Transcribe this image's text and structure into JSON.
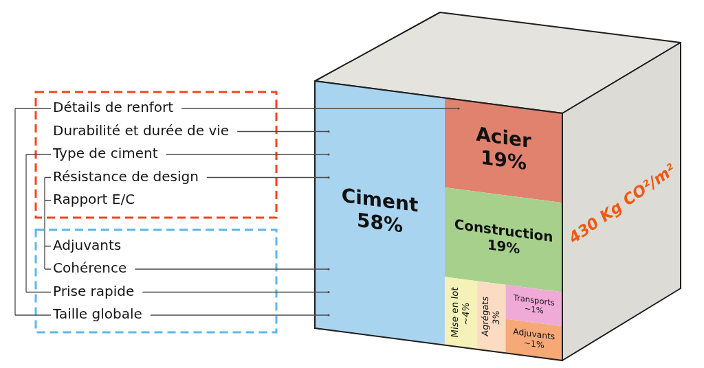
{
  "chart_data": {
    "type": "other",
    "title": "430 Kg CO²/m²",
    "categories": [
      "Ciment",
      "Acier",
      "Construction",
      "Mise en lot",
      "Agrégats",
      "Transports",
      "Adjuvants"
    ],
    "values": [
      58,
      19,
      19,
      4,
      3,
      1,
      1
    ],
    "value_labels": [
      "58%",
      "19%",
      "19%",
      "~4%",
      "3%",
      "~1%",
      "~1%"
    ],
    "colors": [
      "#a9d4f0",
      "#e0826e",
      "#a8d08d",
      "#f4f2b6",
      "#fbdcc2",
      "#f0aad8",
      "#f6a877"
    ],
    "annotations": [
      "Détails de renfort",
      "Durabilité et durée de vie",
      "Type de ciment",
      "Résistance de design",
      "Rapport E/C",
      "Adjuvants",
      "Cohérence",
      "Prise rapide",
      "Taille globale"
    ]
  }
}
